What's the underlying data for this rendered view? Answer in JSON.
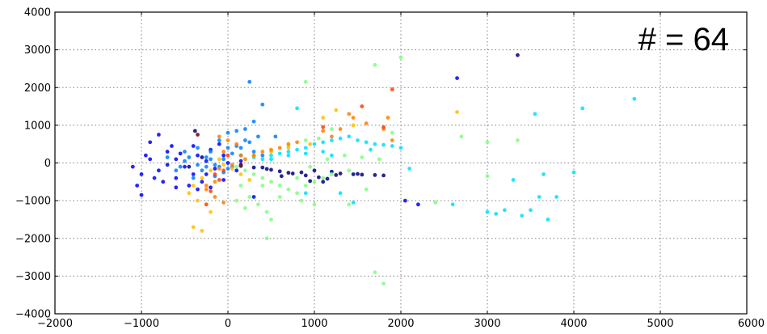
{
  "chart_data": {
    "type": "scatter",
    "title": "",
    "xlabel": "",
    "ylabel": "",
    "xlim": [
      -2000,
      6000
    ],
    "ylim": [
      -4000,
      4000
    ],
    "xticks": [
      "−2000",
      "−1000",
      "0",
      "1000",
      "2000",
      "3000",
      "4000",
      "5000",
      "6000"
    ],
    "xtick_values": [
      -2000,
      -1000,
      0,
      1000,
      2000,
      3000,
      4000,
      5000,
      6000
    ],
    "yticks": [
      "−4000",
      "−3000",
      "−2000",
      "−1000",
      "0",
      "1000",
      "2000",
      "3000",
      "4000"
    ],
    "ytick_values": [
      -4000,
      -3000,
      -2000,
      -1000,
      0,
      1000,
      2000,
      3000,
      4000
    ],
    "grid": true,
    "annotation": "# = 64",
    "series": [
      {
        "color": "#00007f",
        "points": [
          [
            150,
            -80
          ],
          [
            300,
            -120
          ],
          [
            450,
            -160
          ],
          [
            600,
            -220
          ],
          [
            750,
            -280
          ],
          [
            900,
            -330
          ],
          [
            1050,
            -380
          ],
          [
            1150,
            -420
          ],
          [
            700,
            -260
          ],
          [
            500,
            -180
          ],
          [
            1300,
            -280
          ],
          [
            1450,
            -300
          ],
          [
            1550,
            -310
          ],
          [
            1700,
            -320
          ],
          [
            1800,
            -330
          ],
          [
            1200,
            -230
          ],
          [
            1000,
            -200
          ],
          [
            850,
            -250
          ],
          [
            400,
            -120
          ],
          [
            -380,
            850
          ],
          [
            -450,
            -100
          ],
          [
            -300,
            150
          ],
          [
            3350,
            2860
          ],
          [
            1100,
            -500
          ],
          [
            950,
            -480
          ],
          [
            620,
            -350
          ],
          [
            1250,
            -320
          ],
          [
            1500,
            -290
          ]
        ]
      },
      {
        "color": "#0000ff",
        "points": [
          [
            -800,
            750
          ],
          [
            -900,
            550
          ],
          [
            -700,
            300
          ],
          [
            -600,
            100
          ],
          [
            -500,
            -100
          ],
          [
            -400,
            -300
          ],
          [
            -300,
            -500
          ],
          [
            -200,
            -650
          ],
          [
            -1000,
            -300
          ],
          [
            -1050,
            -600
          ],
          [
            -1100,
            -100
          ],
          [
            -800,
            -200
          ],
          [
            -600,
            -400
          ],
          [
            -450,
            -600
          ],
          [
            -350,
            -700
          ],
          [
            -200,
            350
          ],
          [
            -100,
            500
          ],
          [
            -50,
            200
          ],
          [
            0,
            0
          ],
          [
            -150,
            -150
          ],
          [
            -250,
            50
          ],
          [
            -350,
            200
          ],
          [
            -700,
            -50
          ],
          [
            -900,
            100
          ],
          [
            -750,
            -500
          ],
          [
            -1000,
            -850
          ],
          [
            -550,
            250
          ],
          [
            -250,
            -300
          ],
          [
            100,
            -200
          ],
          [
            150,
            50
          ],
          [
            -50,
            -450
          ],
          [
            2650,
            2250
          ],
          [
            2050,
            -1000
          ],
          [
            2200,
            -1100
          ],
          [
            300,
            -900
          ],
          [
            -400,
            450
          ],
          [
            -600,
            -650
          ],
          [
            -850,
            -400
          ],
          [
            -950,
            200
          ],
          [
            -650,
            450
          ]
        ]
      },
      {
        "color": "#007fff",
        "points": [
          [
            -500,
            50
          ],
          [
            -350,
            -50
          ],
          [
            -250,
            150
          ],
          [
            -150,
            -50
          ],
          [
            -50,
            100
          ],
          [
            50,
            250
          ],
          [
            150,
            400
          ],
          [
            250,
            550
          ],
          [
            350,
            700
          ],
          [
            -100,
            600
          ],
          [
            0,
            800
          ],
          [
            100,
            850
          ],
          [
            200,
            600
          ],
          [
            300,
            300
          ],
          [
            400,
            200
          ],
          [
            -200,
            300
          ],
          [
            -300,
            -200
          ],
          [
            -400,
            -400
          ],
          [
            -150,
            -350
          ],
          [
            -50,
            -250
          ],
          [
            50,
            -100
          ],
          [
            150,
            -50
          ],
          [
            -500,
            300
          ],
          [
            -600,
            -200
          ],
          [
            -700,
            150
          ],
          [
            400,
            1550
          ],
          [
            300,
            1100
          ],
          [
            200,
            900
          ],
          [
            550,
            700
          ],
          [
            250,
            2150
          ],
          [
            100,
            450
          ],
          [
            0,
            -150
          ],
          [
            -100,
            -100
          ],
          [
            -250,
            -100
          ],
          [
            -550,
            -100
          ],
          [
            -450,
            150
          ],
          [
            -350,
            400
          ],
          [
            -200,
            100
          ],
          [
            0,
            400
          ],
          [
            150,
            200
          ]
        ]
      },
      {
        "color": "#00dfff",
        "points": [
          [
            300,
            150
          ],
          [
            400,
            100
          ],
          [
            500,
            200
          ],
          [
            600,
            250
          ],
          [
            700,
            300
          ],
          [
            800,
            350
          ],
          [
            900,
            400
          ],
          [
            1000,
            500
          ],
          [
            1100,
            550
          ],
          [
            1200,
            600
          ],
          [
            1300,
            650
          ],
          [
            1400,
            700
          ],
          [
            1500,
            600
          ],
          [
            1600,
            550
          ],
          [
            1700,
            500
          ],
          [
            1800,
            480
          ],
          [
            1900,
            450
          ],
          [
            2000,
            400
          ],
          [
            500,
            100
          ],
          [
            700,
            200
          ],
          [
            900,
            250
          ],
          [
            1100,
            300
          ],
          [
            2600,
            -1100
          ],
          [
            3000,
            -1300
          ],
          [
            3200,
            -1250
          ],
          [
            3400,
            -1400
          ],
          [
            3600,
            -900
          ],
          [
            3800,
            -900
          ],
          [
            4000,
            -250
          ],
          [
            4100,
            1450
          ],
          [
            3550,
            1300
          ],
          [
            4700,
            1700
          ],
          [
            3100,
            -1350
          ],
          [
            3500,
            -1250
          ],
          [
            3700,
            -1500
          ],
          [
            2100,
            -150
          ],
          [
            800,
            1450
          ],
          [
            900,
            -800
          ],
          [
            1300,
            -800
          ],
          [
            1450,
            -1050
          ],
          [
            3300,
            -450
          ],
          [
            3650,
            -300
          ],
          [
            1200,
            200
          ],
          [
            1650,
            350
          ]
        ]
      },
      {
        "color": "#7fff7f",
        "points": [
          [
            100,
            -100
          ],
          [
            200,
            -200
          ],
          [
            300,
            -300
          ],
          [
            400,
            -400
          ],
          [
            500,
            -500
          ],
          [
            600,
            -600
          ],
          [
            700,
            -700
          ],
          [
            800,
            -800
          ],
          [
            900,
            -600
          ],
          [
            1000,
            -500
          ],
          [
            1100,
            -400
          ],
          [
            1200,
            -300
          ],
          [
            150,
            -600
          ],
          [
            250,
            -900
          ],
          [
            350,
            -1100
          ],
          [
            450,
            -1300
          ],
          [
            500,
            -1500
          ],
          [
            1400,
            -1100
          ],
          [
            1600,
            -700
          ],
          [
            1700,
            -2900
          ],
          [
            1800,
            -3200
          ],
          [
            1050,
            650
          ],
          [
            900,
            600
          ],
          [
            700,
            450
          ],
          [
            800,
            -400
          ],
          [
            950,
            -100
          ],
          [
            1150,
            100
          ],
          [
            1350,
            200
          ],
          [
            1550,
            150
          ],
          [
            1750,
            100
          ],
          [
            2400,
            -1050
          ],
          [
            2700,
            700
          ],
          [
            3000,
            550
          ],
          [
            3350,
            600
          ],
          [
            3000,
            -350
          ],
          [
            1900,
            800
          ],
          [
            1700,
            2600
          ],
          [
            2000,
            2800
          ],
          [
            1200,
            900
          ],
          [
            1400,
            -200
          ],
          [
            900,
            2150
          ],
          [
            850,
            -1000
          ],
          [
            400,
            -600
          ],
          [
            600,
            -900
          ],
          [
            1000,
            -1100
          ],
          [
            100,
            -1000
          ],
          [
            200,
            -1200
          ],
          [
            450,
            -2000
          ]
        ]
      },
      {
        "color": "#ffbf00",
        "points": [
          [
            -100,
            100
          ],
          [
            -50,
            -50
          ],
          [
            50,
            -150
          ],
          [
            150,
            -300
          ],
          [
            250,
            -450
          ],
          [
            -200,
            -200
          ],
          [
            -300,
            -400
          ],
          [
            -400,
            -600
          ],
          [
            -450,
            -800
          ],
          [
            -350,
            -1000
          ],
          [
            -200,
            -1300
          ],
          [
            2650,
            1350
          ],
          [
            1250,
            1400
          ],
          [
            1450,
            1000
          ],
          [
            950,
            500
          ],
          [
            700,
            400
          ],
          [
            500,
            300
          ],
          [
            300,
            200
          ],
          [
            1100,
            1200
          ],
          [
            -400,
            -1700
          ],
          [
            -300,
            -1800
          ]
        ]
      },
      {
        "color": "#ff7f00",
        "points": [
          [
            200,
            100
          ],
          [
            300,
            200
          ],
          [
            400,
            300
          ],
          [
            500,
            350
          ],
          [
            600,
            400
          ],
          [
            700,
            500
          ],
          [
            800,
            550
          ],
          [
            100,
            500
          ],
          [
            0,
            600
          ],
          [
            -100,
            700
          ],
          [
            -50,
            300
          ],
          [
            -150,
            -500
          ],
          [
            -250,
            -700
          ],
          [
            -150,
            -900
          ],
          [
            -50,
            -1050
          ],
          [
            1300,
            900
          ],
          [
            1400,
            1300
          ],
          [
            1450,
            1200
          ],
          [
            1600,
            1050
          ],
          [
            1800,
            900
          ],
          [
            1850,
            1200
          ],
          [
            1900,
            600
          ],
          [
            1200,
            700
          ],
          [
            1100,
            850
          ],
          [
            -100,
            -150
          ],
          [
            50,
            -50
          ],
          [
            150,
            200
          ],
          [
            -250,
            -600
          ]
        ]
      },
      {
        "color": "#ff3f00",
        "points": [
          [
            -150,
            -300
          ],
          [
            -100,
            -450
          ],
          [
            -200,
            -750
          ],
          [
            -250,
            -1100
          ],
          [
            1900,
            1950
          ],
          [
            1550,
            1500
          ],
          [
            1800,
            950
          ],
          [
            1100,
            950
          ],
          [
            0,
            200
          ],
          [
            -50,
            -200
          ]
        ]
      },
      {
        "color": "#7f0000",
        "points": [
          [
            -350,
            750
          ],
          [
            150,
            -50
          ]
        ]
      }
    ]
  }
}
